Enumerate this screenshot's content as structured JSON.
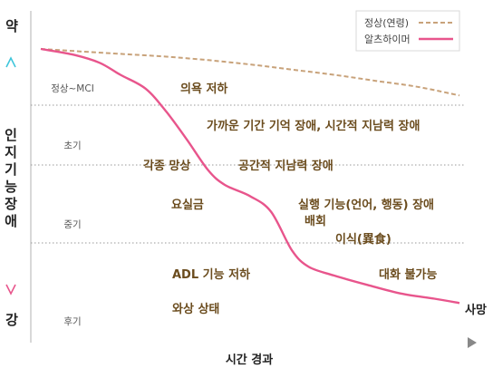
{
  "chart_data": {
    "type": "line",
    "xlabel": "시간 경과",
    "ylabel": "인지기능장애",
    "y_top_label": "약",
    "y_bottom_label": "강",
    "stages": [
      "정상~MCI",
      "초기",
      "중기",
      "후기"
    ],
    "end_label": "사망",
    "legend_position": "top-right",
    "series": [
      {
        "name": "정상(연령)",
        "style": "dashed",
        "color": "#c8a27a",
        "points": [
          [
            0,
            0.0
          ],
          [
            10,
            0.3
          ],
          [
            20,
            0.6
          ],
          [
            30,
            0.9
          ],
          [
            40,
            1.3
          ],
          [
            50,
            1.8
          ],
          [
            60,
            2.4
          ],
          [
            70,
            3.0
          ],
          [
            80,
            3.7
          ],
          [
            90,
            4.4
          ],
          [
            100,
            5.4
          ]
        ]
      },
      {
        "name": "알츠하이머",
        "style": "solid",
        "color": "#e8558c",
        "points": [
          [
            0,
            0.0
          ],
          [
            8,
            0.7
          ],
          [
            14,
            1.6
          ],
          [
            19,
            3.0
          ],
          [
            25,
            4.6
          ],
          [
            30,
            7.3
          ],
          [
            35,
            10.6
          ],
          [
            40,
            14.1
          ],
          [
            44,
            15.8
          ],
          [
            50,
            17.1
          ],
          [
            55,
            18.9
          ],
          [
            60,
            23.4
          ],
          [
            64,
            25.3
          ],
          [
            70,
            26.3
          ],
          [
            78,
            27.4
          ],
          [
            86,
            28.4
          ],
          [
            94,
            29.0
          ],
          [
            100,
            29.5
          ]
        ]
      }
    ],
    "annotations": [
      "의욕 저하",
      "가까운 기간 기억 장애, 시간적 지남력 장애",
      "각종 망상",
      "공간적 지남력 장애",
      "요실금",
      "실행 기능(언어, 행동) 장애",
      "배회",
      "이식(異食)",
      "ADL 기능 저하",
      "대화 불가능",
      "와상 상태"
    ],
    "colors": {
      "axis_top": "#40c4d8",
      "axis_bottom": "#e8558c",
      "annotation_text": "#6b4c1e"
    }
  }
}
